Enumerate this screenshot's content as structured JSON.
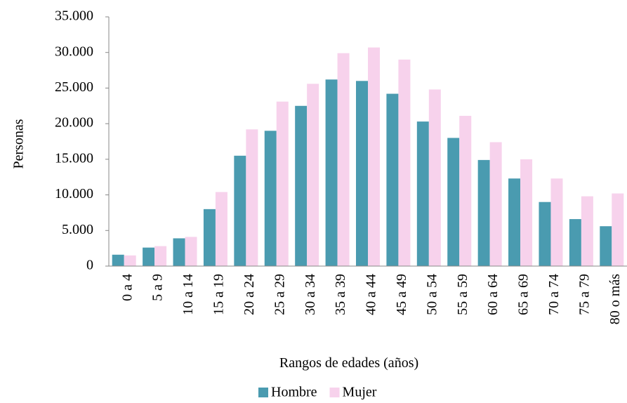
{
  "chart_data": {
    "type": "bar",
    "y_label": "Personas",
    "x_label": "Rangos de edades (años)",
    "categories": [
      "0 a 4",
      "5 a 9",
      "10 a 14",
      "15 a 19",
      "20 a 24",
      "25 a 29",
      "30 a 34",
      "35 a 39",
      "40 a 44",
      "45 a 49",
      "50 a 54",
      "55 a 59",
      "60 a 64",
      "65 a 69",
      "70 a 74",
      "75 a 79",
      "80 o más"
    ],
    "series": [
      {
        "name": "Hombre",
        "color": "#4a9bb0",
        "values": [
          1600,
          2600,
          3900,
          8000,
          15500,
          19000,
          22500,
          26200,
          26000,
          24200,
          20300,
          18000,
          14900,
          12300,
          9000,
          6600,
          5600
        ]
      },
      {
        "name": "Mujer",
        "color": "#f7d2ec",
        "values": [
          1500,
          2800,
          4100,
          10400,
          19200,
          23100,
          25600,
          29900,
          30700,
          29000,
          24800,
          21100,
          17400,
          15000,
          12300,
          9800,
          10200
        ]
      }
    ],
    "ylim": [
      0,
      35000
    ],
    "yticks": [
      0,
      {
        "value": 5000,
        "label": "5.000"
      },
      {
        "value": 10000,
        "label": "10.000"
      },
      {
        "value": 15000,
        "label": "15.000"
      },
      {
        "value": 20000,
        "label": "20.000"
      },
      {
        "value": 25000,
        "label": "25.000"
      },
      {
        "value": 30000,
        "label": "30.000"
      },
      {
        "value": 35000,
        "label": "35.000"
      }
    ],
    "grid": false,
    "legend": "bottom"
  }
}
